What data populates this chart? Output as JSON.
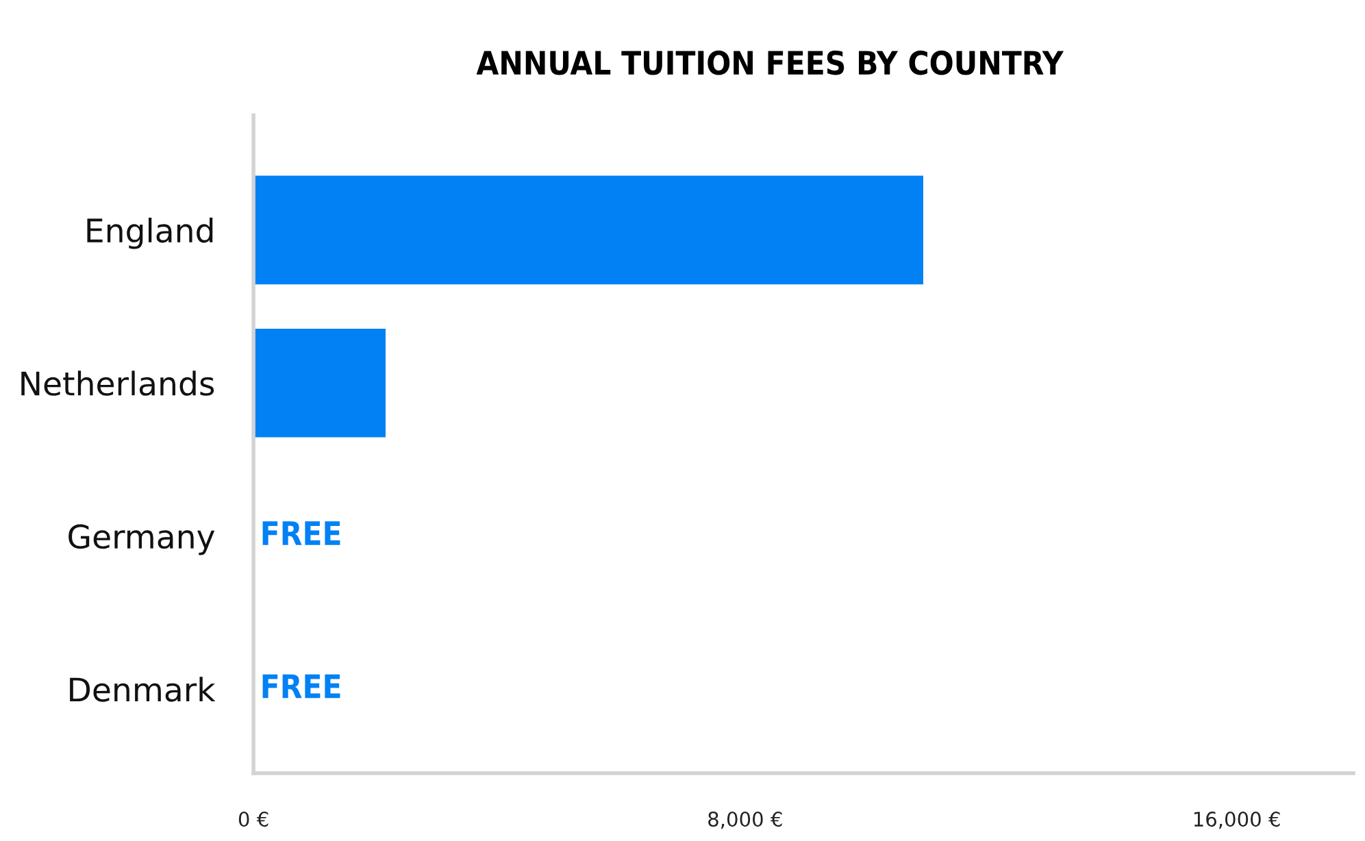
{
  "chart_data": {
    "type": "bar",
    "orientation": "horizontal",
    "title": "ANNUAL TUITION FEES BY COUNTRY",
    "categories": [
      "England",
      "Netherlands",
      "Germany",
      "Denmark"
    ],
    "values": [
      10900,
      2150,
      0,
      0
    ],
    "value_labels": [
      null,
      null,
      "FREE",
      "FREE"
    ],
    "color": "#0281f5",
    "xlim": [
      0,
      17900
    ],
    "xticks": [
      {
        "value": 0,
        "label": "0 €"
      },
      {
        "value": 8000,
        "label": "8,000 €"
      },
      {
        "value": 16000,
        "label": "16,000 €"
      }
    ],
    "grid": false,
    "legend": false
  }
}
